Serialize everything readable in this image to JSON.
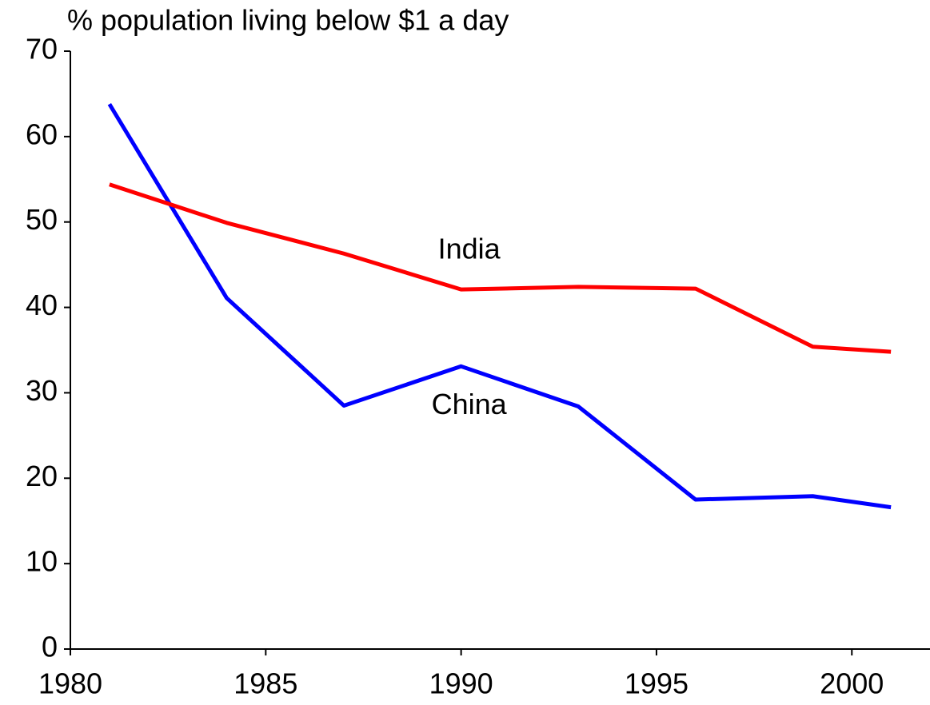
{
  "chart_data": {
    "type": "line",
    "title": "% population living below $1 a day",
    "x": [
      1981,
      1984,
      1987,
      1990,
      1993,
      1996,
      1999,
      2001
    ],
    "series": [
      {
        "name": "China",
        "color": "#0000ff",
        "values": [
          63.8,
          41.1,
          28.5,
          33.1,
          28.4,
          17.5,
          17.9,
          16.6
        ]
      },
      {
        "name": "India",
        "color": "#ff0000",
        "values": [
          54.4,
          49.9,
          46.3,
          42.1,
          42.4,
          42.2,
          35.4,
          34.8
        ]
      }
    ],
    "xlim": [
      1980,
      2002
    ],
    "xticks": [
      1980,
      1985,
      1990,
      1995,
      2000
    ],
    "ylim": [
      0,
      70
    ],
    "yticks": [
      0,
      10,
      20,
      30,
      40,
      50,
      60,
      70
    ],
    "grid": false
  }
}
